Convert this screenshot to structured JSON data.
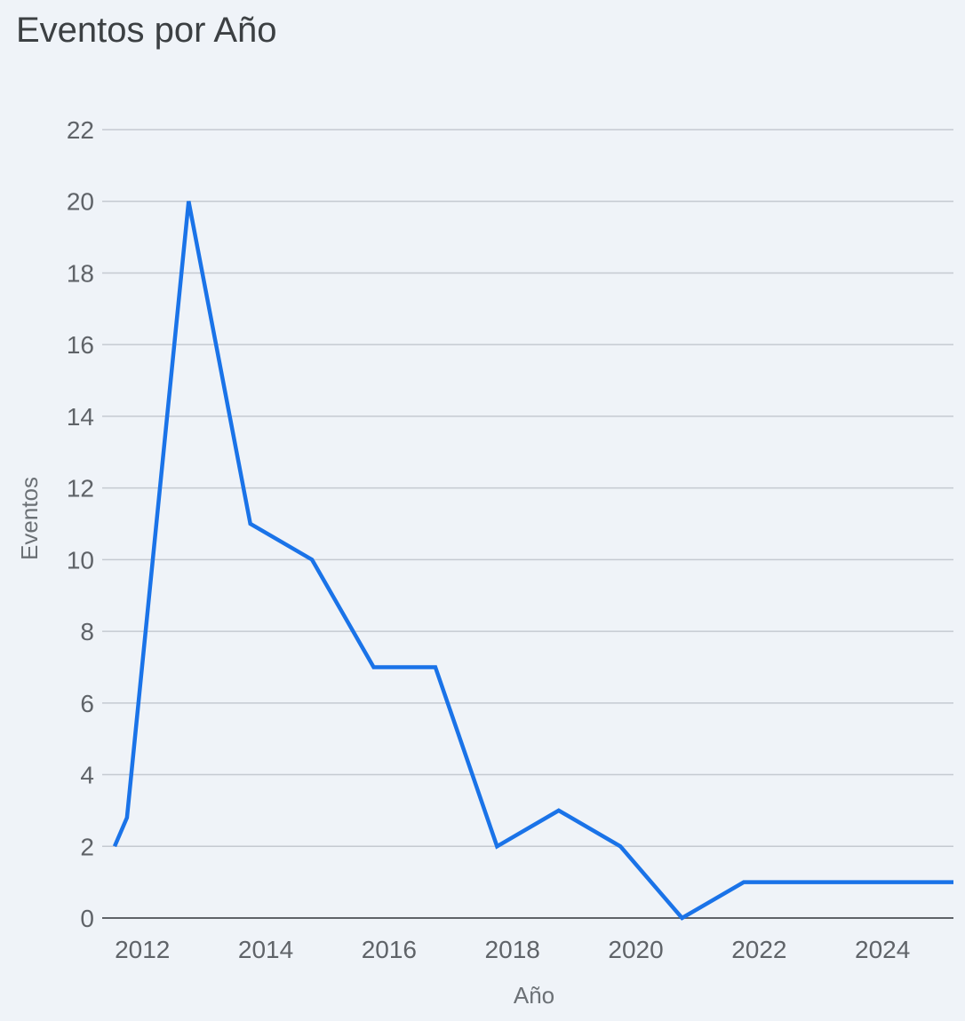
{
  "chart_data": {
    "type": "line",
    "title": "Eventos por Año",
    "xlabel": "Año",
    "ylabel": "Eventos",
    "x": [
      2011.55,
      2011.75,
      2012.75,
      2013.75,
      2014.75,
      2015.75,
      2016.75,
      2017.75,
      2018.75,
      2019.75,
      2020.75,
      2021.75,
      2022.75,
      2023.75,
      2024.75,
      2025.15
    ],
    "series": [
      {
        "values": [
          2,
          2.8,
          20,
          11,
          10,
          7,
          7,
          2,
          3,
          2,
          0,
          1,
          1,
          1,
          1,
          1
        ],
        "color": "#1a73e8"
      }
    ],
    "xlim": [
      2011.55,
      2025.15
    ],
    "ylim": [
      0,
      22
    ],
    "xticks": [
      2012,
      2014,
      2016,
      2018,
      2020,
      2022,
      2024
    ],
    "yticks": [
      0,
      2,
      4,
      6,
      8,
      10,
      12,
      14,
      16,
      18,
      20,
      22
    ],
    "grid": true,
    "legend": "none"
  }
}
